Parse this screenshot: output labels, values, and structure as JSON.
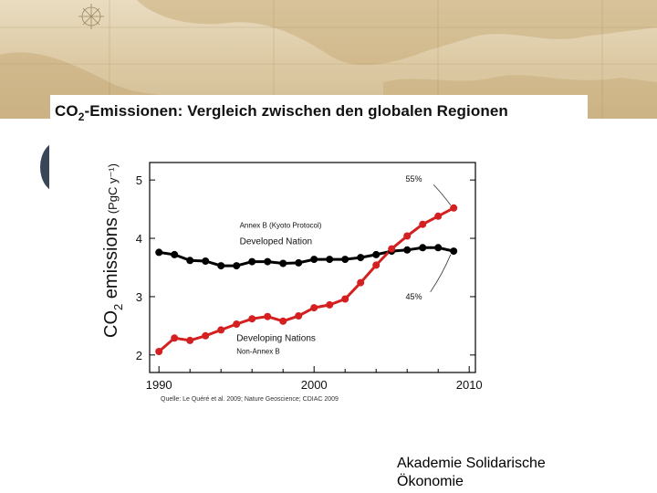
{
  "slide": {
    "title_co": "CO",
    "title_sub": "2",
    "title_rest": "-Emissionen: Vergleich zwischen den globalen Regionen",
    "source": "Quelle: Le Quéré et al. 2009; Nature Geoscience; CDIAC 2009",
    "footer_line1": "Akademie Solidarische",
    "footer_line2": "Ökonomie"
  },
  "colors": {
    "developed": "#000000",
    "developing": "#d42020",
    "map_bg": "#dcc9a3"
  },
  "chart_data": {
    "type": "line",
    "ylabel_main": "CO",
    "ylabel_sub": "2",
    "ylabel_rest": " emissions",
    "ylabel_unit": "(PgC y⁻¹)",
    "xlim": [
      1989.4,
      2010.4
    ],
    "ylim": [
      1.7,
      5.3
    ],
    "x_ticks": [
      1990,
      2000,
      2010
    ],
    "y_ticks": [
      2,
      3,
      4,
      5
    ],
    "grid": false,
    "x": [
      1990,
      1991,
      1992,
      1993,
      1994,
      1995,
      1996,
      1997,
      1998,
      1999,
      2000,
      2001,
      2002,
      2003,
      2004,
      2005,
      2006,
      2007,
      2008,
      2009
    ],
    "series": [
      {
        "name": "Developed Nation",
        "label_top": "Annex B (Kyoto Protocol)",
        "label_main": "Developed Nation",
        "color": "#000000",
        "values": [
          3.76,
          3.72,
          3.62,
          3.61,
          3.53,
          3.53,
          3.6,
          3.6,
          3.57,
          3.58,
          3.64,
          3.64,
          3.64,
          3.67,
          3.72,
          3.78,
          3.8,
          3.84,
          3.84,
          3.78
        ]
      },
      {
        "name": "Developing Nations",
        "label_main": "Developing Nations",
        "label_bottom": "Non-Annex B",
        "color": "#d42020",
        "values": [
          2.06,
          2.29,
          2.25,
          2.33,
          2.43,
          2.53,
          2.62,
          2.66,
          2.58,
          2.67,
          2.81,
          2.86,
          2.96,
          3.24,
          3.54,
          3.82,
          4.04,
          4.24,
          4.38,
          4.52
        ]
      }
    ],
    "annotations": [
      {
        "text": "55%",
        "x": 2005.9,
        "y": 4.97
      },
      {
        "text": "45%",
        "x": 2005.9,
        "y": 2.95
      }
    ]
  }
}
